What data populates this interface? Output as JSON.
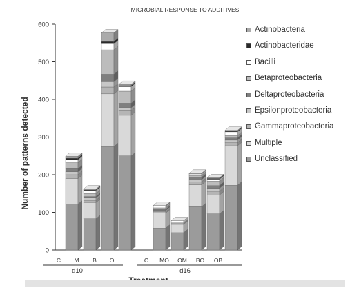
{
  "chart_data": {
    "type": "bar",
    "subtype": "stacked-3d",
    "title": "MICROBIAL RESPONSE TO ADDITIVES",
    "xlabel": "Treatment",
    "ylabel": "Number of patterns detected",
    "ylim": [
      0,
      600
    ],
    "yticks": [
      0,
      100,
      200,
      300,
      400,
      500,
      600
    ],
    "grid": false,
    "legend_position": "right",
    "groups": [
      {
        "label": "d10",
        "categories": [
          "C",
          "M",
          "B",
          "O"
        ]
      },
      {
        "label": "d16",
        "categories": [
          "C",
          "MO",
          "OM",
          "BO",
          "OB"
        ]
      }
    ],
    "categories": [
      "C",
      "M",
      "B",
      "O",
      "C",
      "MO",
      "OM",
      "BO",
      "OB"
    ],
    "series": [
      {
        "name": "Unclassified",
        "color": "#9b9b9b",
        "values": [
          122,
          83,
          275,
          250,
          58,
          46,
          115,
          96,
          172
        ]
      },
      {
        "name": "Multiple",
        "color": "#d9d9d9",
        "values": [
          68,
          43,
          140,
          108,
          40,
          22,
          58,
          50,
          105
        ]
      },
      {
        "name": "Gammaproteobacteria",
        "color": "#b5b5b5",
        "values": [
          10,
          6,
          18,
          12,
          4,
          2,
          8,
          10,
          8
        ]
      },
      {
        "name": "Epsilonproteobacteria",
        "color": "#c7c7c7",
        "values": [
          8,
          6,
          14,
          8,
          3,
          2,
          6,
          8,
          7
        ]
      },
      {
        "name": "Deltaproteobacteria",
        "color": "#7f7f7f",
        "values": [
          8,
          4,
          20,
          12,
          3,
          0,
          6,
          7,
          6
        ]
      },
      {
        "name": "Betaproteobacteria",
        "color": "#bcbcbc",
        "values": [
          16,
          8,
          65,
          32,
          4,
          0,
          5,
          12,
          6
        ]
      },
      {
        "name": "Bacilli",
        "color": "#ffffff",
        "values": [
          8,
          8,
          16,
          12,
          4,
          6,
          4,
          5,
          10
        ]
      },
      {
        "name": "Actinobacteridae",
        "color": "#2a2a2a",
        "values": [
          4,
          2,
          6,
          3,
          0,
          0,
          0,
          2,
          2
        ]
      },
      {
        "name": "Actinobacteria",
        "color": "#aaaaaa",
        "values": [
          5,
          2,
          23,
          3,
          2,
          0,
          2,
          2,
          2
        ]
      }
    ],
    "legend_order": [
      "Actinobacteria",
      "Actinobacteridae",
      "Bacilli",
      "Betaproteobacteria",
      "Deltaproteobacteria",
      "Epsilonproteobacteria",
      "Gammaproteobacteria",
      "Multiple",
      "Unclassified"
    ]
  }
}
